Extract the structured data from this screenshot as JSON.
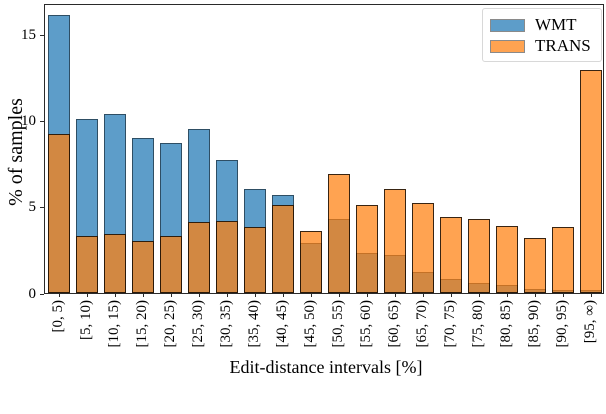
{
  "chart_data": {
    "type": "bar",
    "subtype": "overlapping-histograms",
    "title": "",
    "xlabel": "Edit-distance intervals [%]",
    "ylabel": "% of samples",
    "ylim": [
      0,
      16.7
    ],
    "yticks": [
      0,
      5,
      10,
      15
    ],
    "grid": false,
    "legend_position": "upper right",
    "categories": [
      "[0, 5)",
      "[5, 10)",
      "[10, 15)",
      "[15, 20)",
      "[20, 25)",
      "[25, 30)",
      "[30, 35)",
      "[35, 40)",
      "[40, 45)",
      "[45, 50)",
      "[50, 55)",
      "[55, 60)",
      "[60, 65)",
      "[65, 70)",
      "[70, 75)",
      "[75, 80)",
      "[80, 85)",
      "[85, 90)",
      "[90, 95)",
      "[95, ∞)"
    ],
    "series": [
      {
        "name": "WMT",
        "color": "#1f77b4",
        "fill": "rgba(31,119,180,0.72)",
        "edge": "rgba(0,0,0,0.5)",
        "values": [
          16.1,
          10.1,
          10.4,
          9.0,
          8.7,
          9.5,
          7.7,
          6.0,
          5.7,
          2.9,
          4.3,
          2.3,
          2.2,
          1.2,
          0.8,
          0.6,
          0.45,
          0.25,
          0.15,
          0.2
        ]
      },
      {
        "name": "TRANS",
        "color": "#ff7f0e",
        "fill": "rgba(255,127,14,0.72)",
        "edge": "rgba(0,0,0,0.78)",
        "values": [
          9.2,
          3.3,
          3.4,
          3.0,
          3.3,
          4.1,
          4.2,
          3.8,
          5.1,
          3.6,
          6.9,
          5.1,
          6.0,
          5.2,
          4.4,
          4.3,
          3.9,
          3.2,
          3.8,
          12.9
        ]
      }
    ],
    "blended_colors": {
      "wmt_on_white": "#62A0CB",
      "trans_on_white": "#FFA556",
      "overlap": "#D08947"
    }
  }
}
